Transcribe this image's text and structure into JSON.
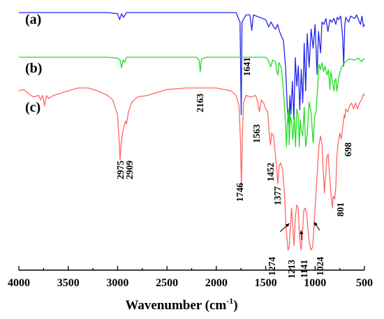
{
  "chart_data": {
    "type": "line",
    "title": "",
    "xlabel_main": "Wavenumber (cm",
    "xlabel_sup": "-1",
    "xlabel_close": ")",
    "ylabel": "",
    "xlim": [
      4000,
      500
    ],
    "x_reversed": true,
    "xticks": [
      4000,
      3500,
      3000,
      2500,
      2000,
      1500,
      1000,
      500
    ],
    "y_axis_visible": false,
    "grid": false,
    "series": [
      {
        "name": "(a)",
        "color": "#2222ee",
        "points": [
          [
            4000,
            0.0
          ],
          [
            3500,
            0.0
          ],
          [
            3100,
            0.0
          ],
          [
            3000,
            0.01
          ],
          [
            2980,
            0.06
          ],
          [
            2960,
            0.01
          ],
          [
            2940,
            0.04
          ],
          [
            2910,
            0.0
          ],
          [
            2000,
            0.0
          ],
          [
            1800,
            0.0
          ],
          [
            1760,
            0.08
          ],
          [
            1748,
            0.86
          ],
          [
            1740,
            0.08
          ],
          [
            1700,
            0.02
          ],
          [
            1660,
            0.02
          ],
          [
            1641,
            0.15
          ],
          [
            1625,
            0.02
          ],
          [
            1500,
            0.06
          ],
          [
            1470,
            0.12
          ],
          [
            1445,
            0.08
          ],
          [
            1420,
            0.12
          ],
          [
            1400,
            0.14
          ],
          [
            1380,
            0.1
          ],
          [
            1360,
            0.16
          ],
          [
            1320,
            0.24
          ],
          [
            1300,
            0.45
          ],
          [
            1280,
            0.82
          ],
          [
            1265,
            0.95
          ],
          [
            1255,
            0.7
          ],
          [
            1245,
            0.86
          ],
          [
            1230,
            0.58
          ],
          [
            1215,
            0.9
          ],
          [
            1200,
            0.38
          ],
          [
            1185,
            0.62
          ],
          [
            1170,
            0.45
          ],
          [
            1155,
            0.82
          ],
          [
            1140,
            0.48
          ],
          [
            1125,
            0.76
          ],
          [
            1110,
            0.26
          ],
          [
            1095,
            0.66
          ],
          [
            1080,
            0.18
          ],
          [
            1060,
            0.46
          ],
          [
            1040,
            0.14
          ],
          [
            1020,
            0.3
          ],
          [
            1000,
            0.1
          ],
          [
            980,
            0.52
          ],
          [
            965,
            0.16
          ],
          [
            945,
            0.34
          ],
          [
            930,
            0.08
          ],
          [
            910,
            0.1
          ],
          [
            890,
            0.05
          ],
          [
            870,
            0.16
          ],
          [
            850,
            0.06
          ],
          [
            830,
            0.08
          ],
          [
            810,
            0.05
          ],
          [
            790,
            0.1
          ],
          [
            775,
            0.04
          ],
          [
            760,
            0.06
          ],
          [
            740,
            0.03
          ],
          [
            720,
            0.22
          ],
          [
            710,
            0.45
          ],
          [
            700,
            0.12
          ],
          [
            690,
            0.04
          ],
          [
            660,
            0.08
          ],
          [
            640,
            0.03
          ],
          [
            600,
            0.05
          ],
          [
            580,
            0.02
          ],
          [
            560,
            0.06
          ],
          [
            540,
            0.1
          ],
          [
            525,
            0.03
          ],
          [
            510,
            0.12
          ],
          [
            500,
            0.1
          ]
        ]
      },
      {
        "name": "(b)",
        "color": "#22dd22",
        "points": [
          [
            4000,
            0.0
          ],
          [
            3100,
            0.0
          ],
          [
            3000,
            0.01
          ],
          [
            2975,
            0.03
          ],
          [
            2960,
            0.12
          ],
          [
            2945,
            0.03
          ],
          [
            2930,
            0.06
          ],
          [
            2910,
            0.0
          ],
          [
            2200,
            0.0
          ],
          [
            2175,
            0.03
          ],
          [
            2163,
            0.16
          ],
          [
            2150,
            0.02
          ],
          [
            2100,
            0.0
          ],
          [
            1500,
            0.0
          ],
          [
            1470,
            0.04
          ],
          [
            1450,
            0.11
          ],
          [
            1430,
            0.03
          ],
          [
            1400,
            0.05
          ],
          [
            1390,
            0.14
          ],
          [
            1377,
            0.2
          ],
          [
            1365,
            0.06
          ],
          [
            1340,
            0.12
          ],
          [
            1320,
            0.38
          ],
          [
            1300,
            0.72
          ],
          [
            1290,
            1.0
          ],
          [
            1280,
            0.72
          ],
          [
            1270,
            0.58
          ],
          [
            1262,
            0.98
          ],
          [
            1250,
            0.66
          ],
          [
            1238,
            0.72
          ],
          [
            1225,
            0.92
          ],
          [
            1210,
            0.66
          ],
          [
            1198,
            1.0
          ],
          [
            1185,
            0.58
          ],
          [
            1172,
            0.64
          ],
          [
            1160,
            1.0
          ],
          [
            1150,
            0.7
          ],
          [
            1140,
            0.82
          ],
          [
            1125,
            0.88
          ],
          [
            1110,
            0.56
          ],
          [
            1095,
            1.0
          ],
          [
            1080,
            0.86
          ],
          [
            1060,
            0.5
          ],
          [
            1040,
            0.62
          ],
          [
            1020,
            0.96
          ],
          [
            1005,
            0.66
          ],
          [
            990,
            0.62
          ],
          [
            975,
            0.36
          ],
          [
            960,
            0.08
          ],
          [
            945,
            0.14
          ],
          [
            930,
            0.06
          ],
          [
            915,
            0.16
          ],
          [
            900,
            0.1
          ],
          [
            880,
            0.2
          ],
          [
            865,
            0.14
          ],
          [
            850,
            0.36
          ],
          [
            840,
            0.16
          ],
          [
            820,
            0.3
          ],
          [
            808,
            0.38
          ],
          [
            800,
            0.26
          ],
          [
            790,
            0.24
          ],
          [
            780,
            0.38
          ],
          [
            770,
            0.3
          ],
          [
            755,
            0.2
          ],
          [
            735,
            0.12
          ],
          [
            700,
            0.06
          ],
          [
            660,
            0.02
          ],
          [
            600,
            0.03
          ],
          [
            560,
            0.01
          ],
          [
            530,
            0.05
          ],
          [
            510,
            0.02
          ],
          [
            500,
            0.03
          ]
        ]
      },
      {
        "name": "(c)",
        "color": "#ff6666",
        "points": [
          [
            4000,
            0.02
          ],
          [
            3950,
            0.01
          ],
          [
            3900,
            0.04
          ],
          [
            3850,
            0.06
          ],
          [
            3800,
            0.05
          ],
          [
            3780,
            0.08
          ],
          [
            3760,
            0.05
          ],
          [
            3740,
            0.12
          ],
          [
            3720,
            0.05
          ],
          [
            3700,
            0.07
          ],
          [
            3650,
            0.05
          ],
          [
            3600,
            0.04
          ],
          [
            3550,
            0.03
          ],
          [
            3500,
            0.02
          ],
          [
            3400,
            0.0
          ],
          [
            3300,
            0.0
          ],
          [
            3200,
            0.02
          ],
          [
            3100,
            0.05
          ],
          [
            3050,
            0.08
          ],
          [
            3000,
            0.18
          ],
          [
            2985,
            0.34
          ],
          [
            2975,
            0.48
          ],
          [
            2965,
            0.38
          ],
          [
            2950,
            0.3
          ],
          [
            2935,
            0.26
          ],
          [
            2920,
            0.22
          ],
          [
            2909,
            0.24
          ],
          [
            2890,
            0.16
          ],
          [
            2860,
            0.1
          ],
          [
            2800,
            0.06
          ],
          [
            2700,
            0.05
          ],
          [
            2600,
            0.03
          ],
          [
            2500,
            0.01
          ],
          [
            2300,
            0.0
          ],
          [
            2000,
            0.0
          ],
          [
            1850,
            0.02
          ],
          [
            1800,
            0.05
          ],
          [
            1770,
            0.12
          ],
          [
            1755,
            0.36
          ],
          [
            1746,
            0.68
          ],
          [
            1738,
            0.36
          ],
          [
            1725,
            0.1
          ],
          [
            1700,
            0.05
          ],
          [
            1650,
            0.06
          ],
          [
            1600,
            0.05
          ],
          [
            1580,
            0.1
          ],
          [
            1563,
            0.16
          ],
          [
            1545,
            0.08
          ],
          [
            1520,
            0.1
          ],
          [
            1500,
            0.14
          ],
          [
            1480,
            0.16
          ],
          [
            1465,
            0.3
          ],
          [
            1452,
            0.38
          ],
          [
            1440,
            0.3
          ],
          [
            1420,
            0.32
          ],
          [
            1400,
            0.46
          ],
          [
            1390,
            0.52
          ],
          [
            1377,
            0.64
          ],
          [
            1365,
            0.52
          ],
          [
            1350,
            0.5
          ],
          [
            1330,
            0.54
          ],
          [
            1310,
            0.7
          ],
          [
            1295,
            0.92
          ],
          [
            1285,
            1.0
          ],
          [
            1274,
            1.08
          ],
          [
            1262,
            1.06
          ],
          [
            1250,
            0.92
          ],
          [
            1238,
            0.8
          ],
          [
            1228,
            0.9
          ],
          [
            1213,
            1.05
          ],
          [
            1200,
            0.86
          ],
          [
            1185,
            0.78
          ],
          [
            1170,
            0.8
          ],
          [
            1160,
            0.96
          ],
          [
            1150,
            1.04
          ],
          [
            1141,
            1.08
          ],
          [
            1130,
            1.0
          ],
          [
            1115,
            0.82
          ],
          [
            1100,
            0.8
          ],
          [
            1085,
            0.84
          ],
          [
            1070,
            0.96
          ],
          [
            1055,
            1.04
          ],
          [
            1040,
            1.08
          ],
          [
            1024,
            1.06
          ],
          [
            1010,
            0.9
          ],
          [
            1000,
            0.8
          ],
          [
            990,
            0.7
          ],
          [
            975,
            0.54
          ],
          [
            960,
            0.38
          ],
          [
            945,
            0.32
          ],
          [
            930,
            0.38
          ],
          [
            915,
            0.58
          ],
          [
            905,
            0.7
          ],
          [
            895,
            0.6
          ],
          [
            880,
            0.46
          ],
          [
            868,
            0.44
          ],
          [
            855,
            0.56
          ],
          [
            840,
            0.7
          ],
          [
            825,
            0.8
          ],
          [
            815,
            0.72
          ],
          [
            801,
            0.74
          ],
          [
            790,
            0.66
          ],
          [
            780,
            0.46
          ],
          [
            765,
            0.36
          ],
          [
            750,
            0.3
          ],
          [
            735,
            0.34
          ],
          [
            720,
            0.26
          ],
          [
            705,
            0.18
          ],
          [
            698,
            0.2
          ],
          [
            690,
            0.14
          ],
          [
            670,
            0.16
          ],
          [
            650,
            0.12
          ],
          [
            630,
            0.1
          ],
          [
            610,
            0.14
          ],
          [
            590,
            0.1
          ],
          [
            570,
            0.14
          ],
          [
            550,
            0.1
          ],
          [
            530,
            0.08
          ],
          [
            510,
            0.04
          ],
          [
            500,
            0.05
          ]
        ]
      }
    ],
    "peak_labels": [
      {
        "text": "1641",
        "x": 1641,
        "series": 0
      },
      {
        "text": "2163",
        "x": 2163,
        "series": 1
      },
      {
        "text": "1563",
        "x": 1563,
        "series": 2
      },
      {
        "text": "2975",
        "x": 2975,
        "series": 2
      },
      {
        "text": "2909",
        "x": 2909,
        "series": 2
      },
      {
        "text": "1746",
        "x": 1746,
        "series": 2
      },
      {
        "text": "1452",
        "x": 1452,
        "series": 2
      },
      {
        "text": "1377",
        "x": 1377,
        "series": 2
      },
      {
        "text": "801",
        "x": 801,
        "series": 2
      },
      {
        "text": "698",
        "x": 698,
        "series": 2
      },
      {
        "text": "1274",
        "x": 1274,
        "series": 2
      },
      {
        "text": "1213",
        "x": 1213,
        "series": 2
      },
      {
        "text": "1141",
        "x": 1141,
        "series": 2
      },
      {
        "text": "1024",
        "x": 1024,
        "series": 2
      }
    ]
  }
}
